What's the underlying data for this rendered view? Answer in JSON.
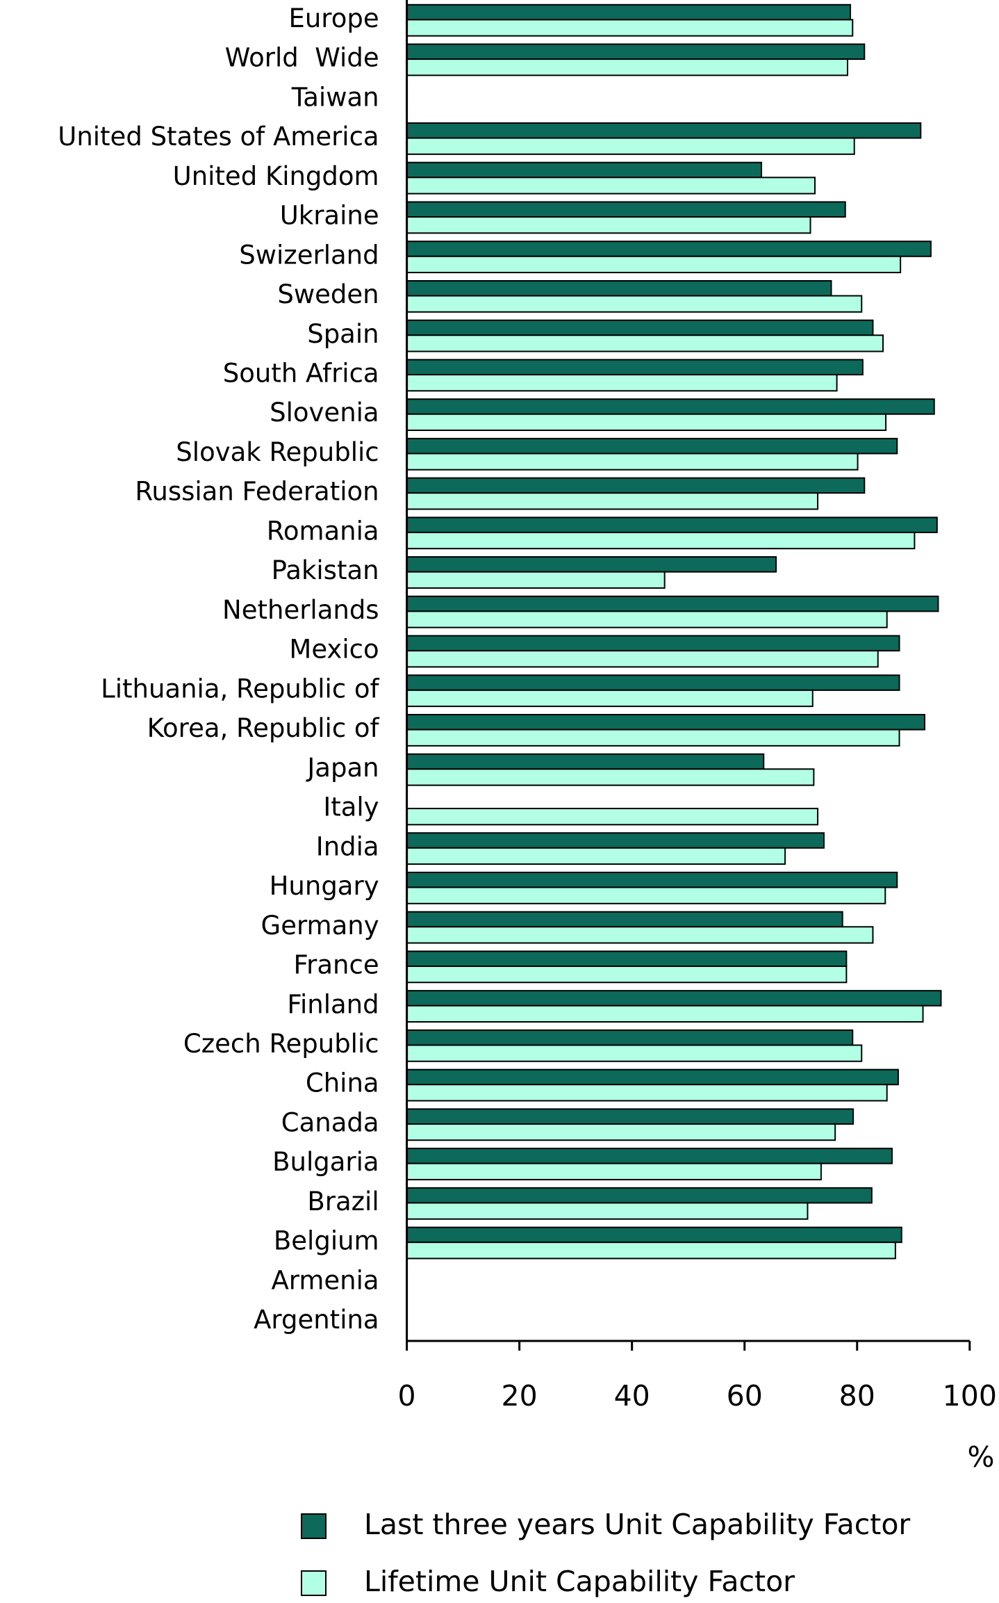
{
  "chart_data": {
    "type": "bar",
    "orientation": "horizontal",
    "categories": [
      "Europe",
      "World  Wide",
      "Taiwan",
      "United States of America",
      "United Kingdom",
      "Ukraine",
      "Swizerland",
      "Sweden",
      "Spain",
      "South Africa",
      "Slovenia",
      "Slovak Republic",
      "Russian Federation",
      "Romania",
      "Pakistan",
      "Netherlands",
      "Mexico",
      "Lithuania, Republic of",
      "Korea, Republic of",
      "Japan",
      "Italy",
      "India",
      "Hungary",
      "Germany",
      "France",
      "Finland",
      "Czech Republic",
      "China",
      "Canada",
      "Bulgaria",
      "Brazil",
      "Belgium",
      "Armenia",
      "Argentina"
    ],
    "series": [
      {
        "name": "Last three years Unit Capability Factor",
        "color": "#0d6a5a",
        "values": [
          78.8,
          81.3,
          null,
          91.3,
          63.0,
          77.9,
          93.1,
          75.4,
          82.8,
          81.0,
          93.7,
          87.1,
          81.3,
          94.2,
          65.6,
          94.4,
          87.5,
          87.5,
          92.0,
          63.4,
          null,
          74.1,
          87.1,
          77.4,
          78.1,
          94.9,
          79.2,
          87.3,
          79.3,
          86.2,
          82.6,
          87.9,
          null,
          null
        ]
      },
      {
        "name": "Lifetime Unit Capability Factor",
        "color": "#b3ffe6",
        "values": [
          79.2,
          78.3,
          null,
          79.5,
          72.5,
          71.7,
          87.7,
          80.8,
          84.6,
          76.4,
          85.1,
          80.1,
          73.0,
          90.2,
          45.8,
          85.3,
          83.7,
          72.1,
          87.5,
          72.3,
          73.0,
          67.2,
          85.0,
          82.8,
          78.1,
          91.7,
          80.8,
          85.3,
          76.1,
          73.6,
          71.2,
          86.8,
          null,
          null
        ]
      }
    ],
    "xlim": [
      0,
      100
    ],
    "xticks": [
      0,
      20,
      40,
      60,
      80,
      100
    ],
    "x_label": "%",
    "legend": "bottom"
  }
}
